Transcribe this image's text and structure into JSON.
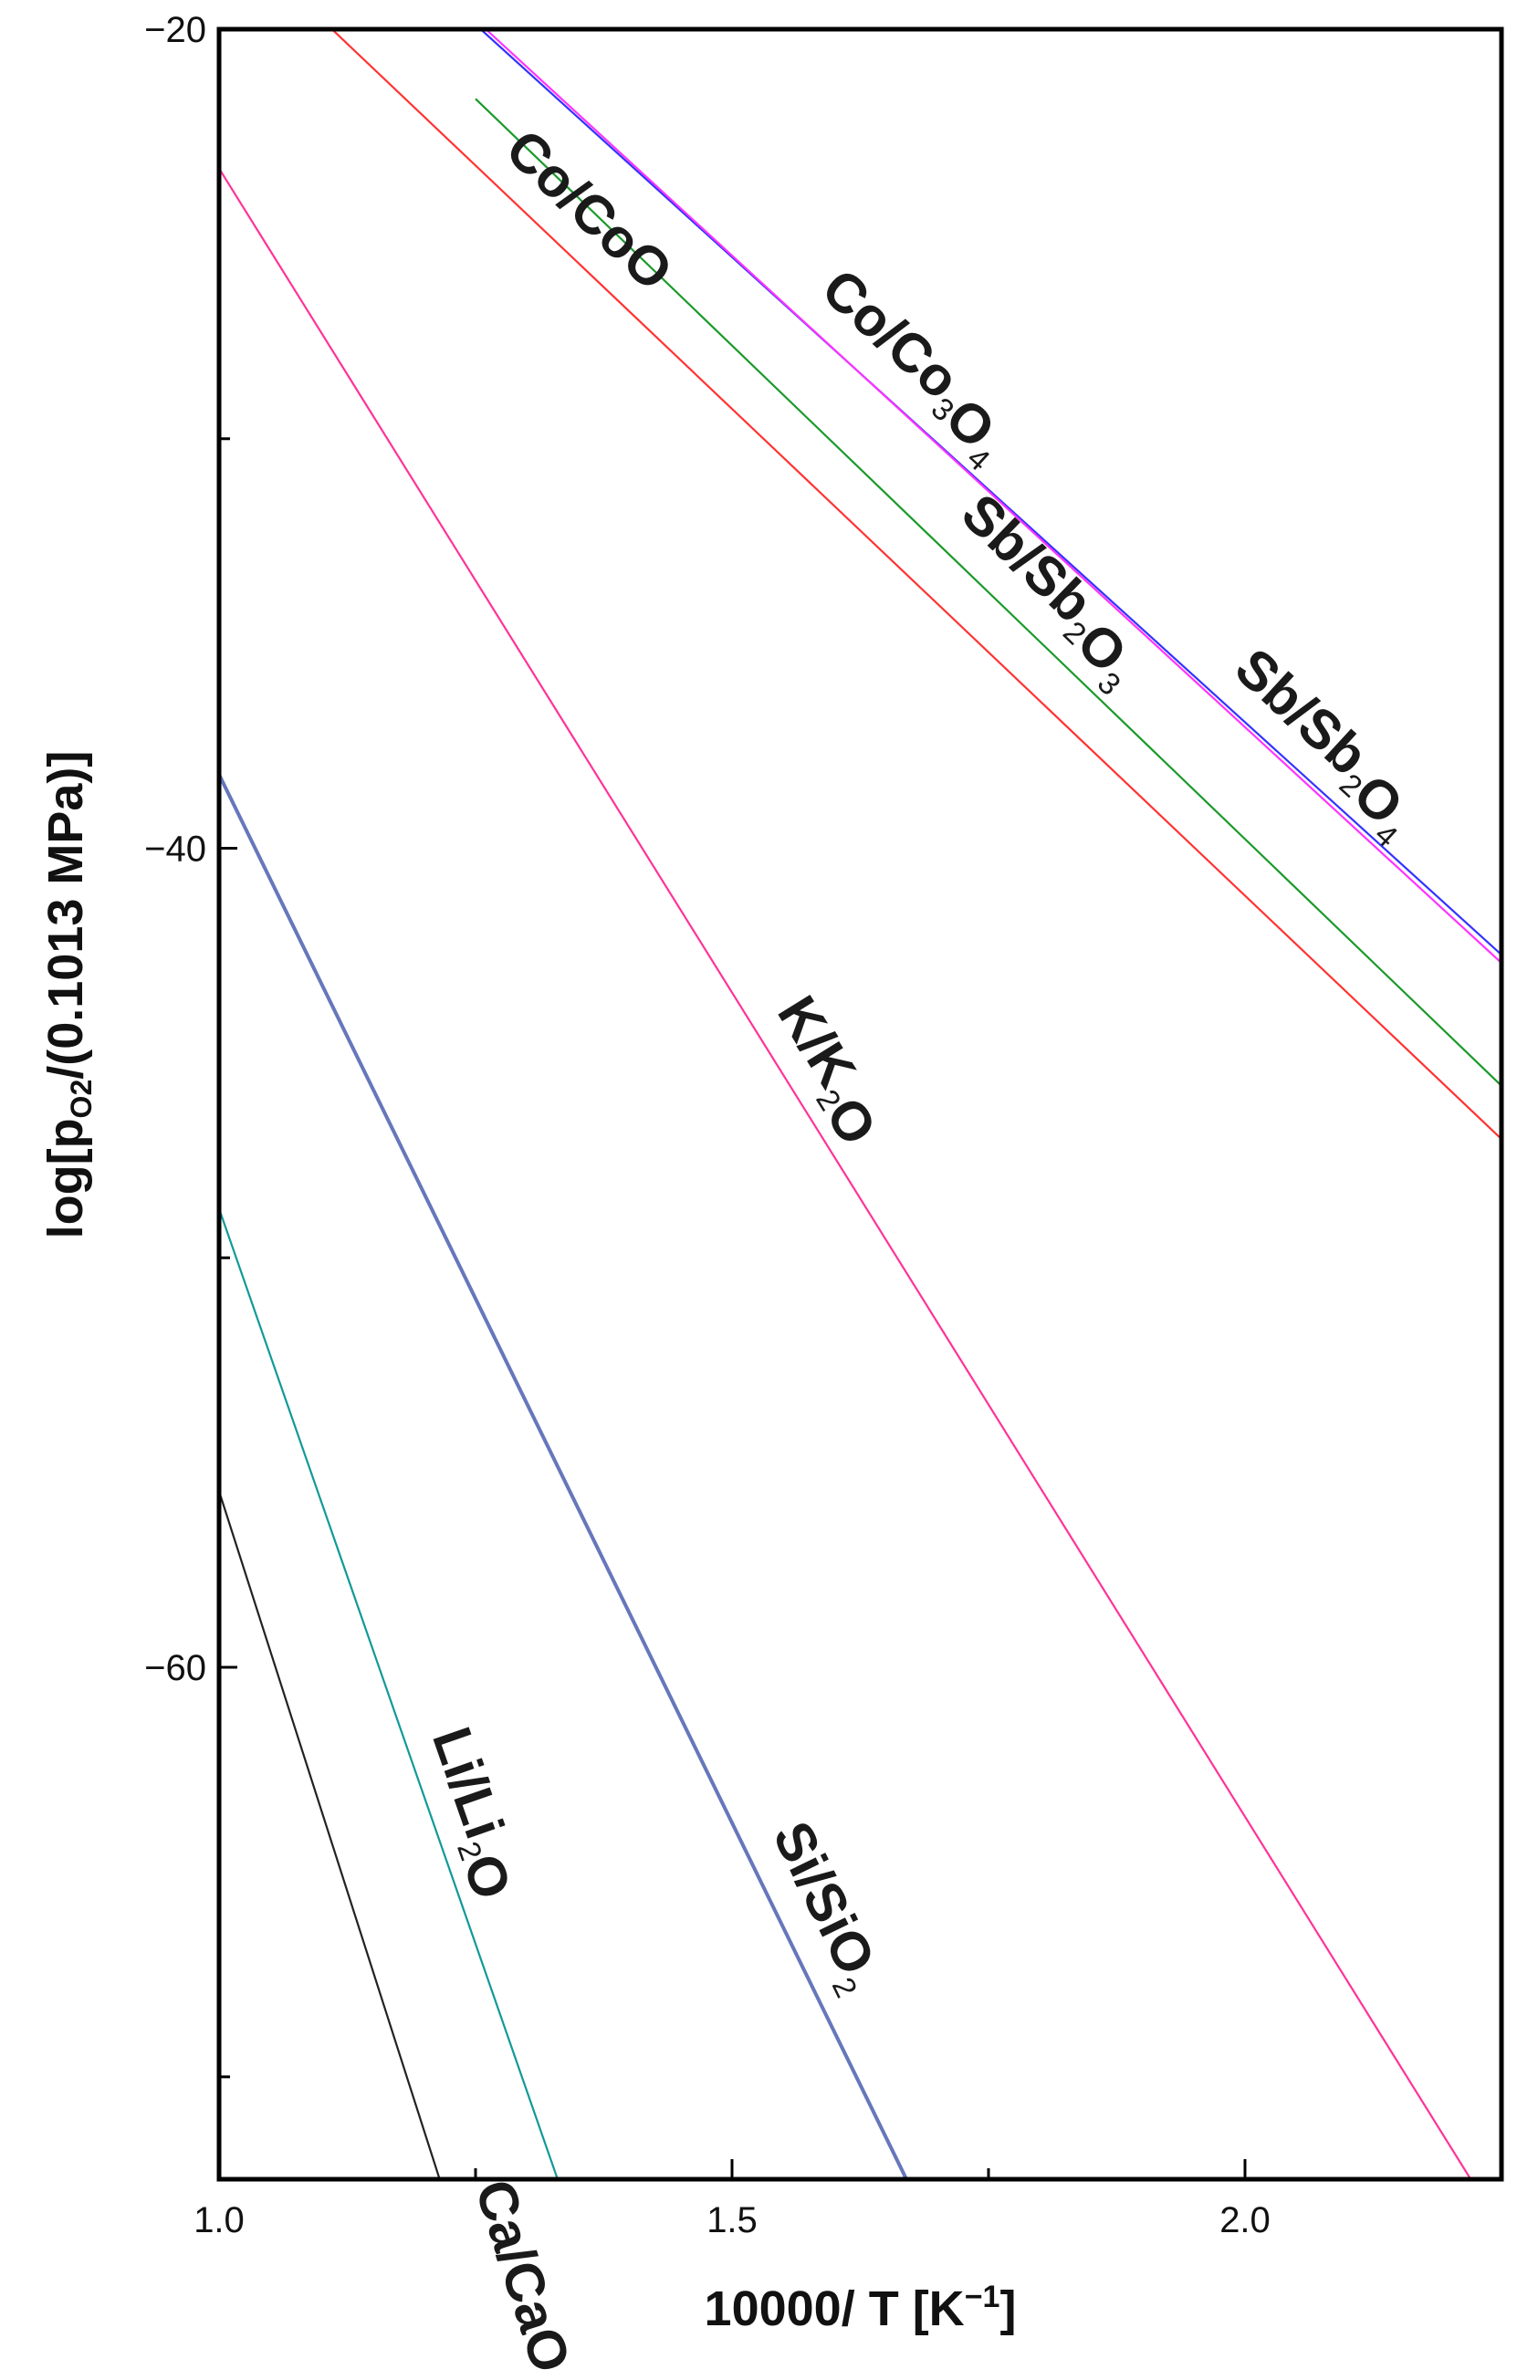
{
  "chart_data": {
    "type": "line",
    "title": "",
    "xlabel": "10000/ T [K⁻¹]",
    "xlabel_parts": {
      "main": "10000/ T [K",
      "sup": "−1",
      "tail": "]"
    },
    "ylabel": "log[pO2/(0.1013 MPa)]",
    "ylabel_parts": {
      "pre": "log[p",
      "sub": "O2",
      "post": "/(0.1013 MPa)]"
    },
    "xlim": [
      1.0,
      2.25
    ],
    "ylim": [
      -72.5,
      -20
    ],
    "x_ticks": [
      {
        "value": 1.0,
        "label": "1.0"
      },
      {
        "value": 1.5,
        "label": "1.5"
      },
      {
        "value": 2.0,
        "label": "2.0"
      }
    ],
    "x_minor_ticks": [
      1.25,
      1.75
    ],
    "y_ticks": [
      {
        "value": -20,
        "label": "−20"
      },
      {
        "value": -40,
        "label": "−40"
      },
      {
        "value": -60,
        "label": "−60"
      }
    ],
    "y_minor_ticks": [
      -30,
      -50,
      -70
    ],
    "grid": false,
    "legend": "none (curves labeled inline)",
    "series": [
      {
        "name": "Co/Co3O4",
        "label_parts": [
          [
            "Co/Co",
            ""
          ],
          [
            "3",
            "sub"
          ],
          [
            "O",
            ""
          ],
          [
            "4",
            "sub"
          ]
        ],
        "color": "#3333ff",
        "x": [
          1.255,
          2.25
        ],
        "y": [
          -20.0,
          -42.6
        ]
      },
      {
        "name": "Sb/Sb2O4",
        "label_parts": [
          [
            "Sb/Sb",
            ""
          ],
          [
            "2",
            "sub"
          ],
          [
            "O",
            ""
          ],
          [
            "4",
            "sub"
          ]
        ],
        "color": "#ff33ff",
        "x": [
          1.26,
          2.25
        ],
        "y": [
          -20.0,
          -42.8
        ]
      },
      {
        "name": "Sb/Sb2O3",
        "label_parts": [
          [
            "Sb/Sb",
            ""
          ],
          [
            "2",
            "sub"
          ],
          [
            "O",
            ""
          ],
          [
            "3",
            "sub"
          ]
        ],
        "color": "#1a9a2a",
        "x": [
          1.25,
          2.25
        ],
        "y": [
          -21.7,
          -45.8
        ]
      },
      {
        "name": "Co/CoO",
        "label_parts": [
          [
            "Co/CoO",
            ""
          ]
        ],
        "color": "#ff3333",
        "x": [
          1.11,
          2.25
        ],
        "y": [
          -20.0,
          -47.1
        ]
      },
      {
        "name": "K/K2O",
        "label_parts": [
          [
            "K/K",
            ""
          ],
          [
            "2",
            "sub"
          ],
          [
            "O",
            ""
          ]
        ],
        "color": "#ff3399",
        "x": [
          1.0,
          2.22
        ],
        "y": [
          -23.4,
          -72.5
        ]
      },
      {
        "name": "Si/SiO2",
        "label_parts": [
          [
            "Si/SiO",
            ""
          ],
          [
            "2",
            "sub"
          ]
        ],
        "color": "#6677bb",
        "x": [
          1.0,
          1.67
        ],
        "y": [
          -38.2,
          -72.5
        ]
      },
      {
        "name": "Li/Li2O",
        "label_parts": [
          [
            "Li/Li",
            ""
          ],
          [
            "2",
            "sub"
          ],
          [
            "O",
            ""
          ]
        ],
        "color": "#119999",
        "x": [
          1.0,
          1.33
        ],
        "y": [
          -48.8,
          -72.5
        ]
      },
      {
        "name": "Ca/CaO",
        "label_parts": [
          [
            "Ca/CaO",
            ""
          ]
        ],
        "color": "#222222",
        "x": [
          1.0,
          1.215
        ],
        "y": [
          -55.7,
          -72.5
        ]
      }
    ]
  }
}
